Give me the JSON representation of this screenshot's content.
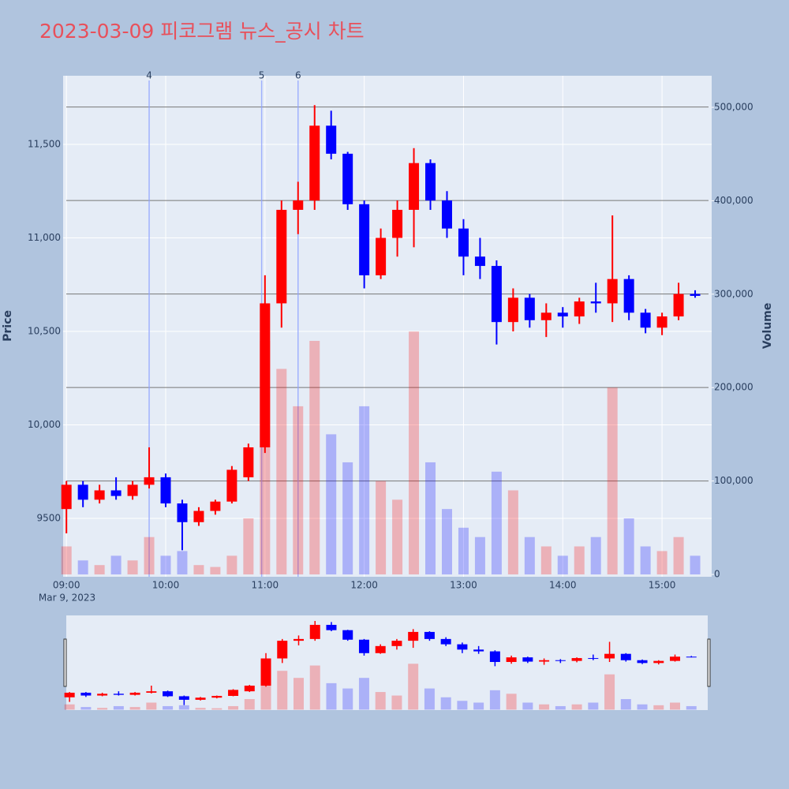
{
  "chart_data": {
    "type": "candlestick",
    "title": "2023-03-09 피코그램 뉴스_공시 차트",
    "x_label_date": "Mar 9, 2023",
    "y_label": "Price",
    "y2_label": "Volume",
    "x": [
      "09:00",
      "09:10",
      "09:20",
      "09:30",
      "09:40",
      "09:50",
      "10:00",
      "10:10",
      "10:20",
      "10:30",
      "10:40",
      "10:50",
      "11:00",
      "11:10",
      "11:20",
      "11:30",
      "11:40",
      "11:50",
      "12:00",
      "12:10",
      "12:20",
      "12:30",
      "12:40",
      "12:50",
      "13:00",
      "13:10",
      "13:20",
      "13:30",
      "13:40",
      "13:50",
      "14:00",
      "14:10",
      "14:20",
      "14:30",
      "14:40",
      "14:50",
      "15:00",
      "15:10",
      "15:20"
    ],
    "open": [
      9550,
      9680,
      9600,
      9650,
      9620,
      9680,
      9720,
      9580,
      9480,
      9540,
      9590,
      9720,
      9880,
      10650,
      11150,
      11200,
      11600,
      11450,
      11180,
      10800,
      11000,
      11150,
      11400,
      11200,
      11050,
      10900,
      10850,
      10550,
      10680,
      10560,
      10600,
      10580,
      10660,
      10650,
      10780,
      10600,
      10520,
      10580,
      10700
    ],
    "high": [
      9700,
      9700,
      9680,
      9720,
      9700,
      9880,
      9740,
      9600,
      9560,
      9600,
      9780,
      9900,
      10800,
      11200,
      11300,
      11710,
      11680,
      11460,
      11200,
      11050,
      11200,
      11480,
      11420,
      11250,
      11100,
      11000,
      10880,
      10730,
      10700,
      10650,
      10630,
      10680,
      10760,
      11120,
      10800,
      10620,
      10600,
      10760,
      10720
    ],
    "low": [
      9420,
      9560,
      9580,
      9600,
      9600,
      9660,
      9560,
      9330,
      9460,
      9520,
      9580,
      9700,
      9850,
      10520,
      11020,
      11150,
      11420,
      11150,
      10730,
      10780,
      10900,
      10950,
      11150,
      11000,
      10800,
      10780,
      10430,
      10500,
      10520,
      10470,
      10520,
      10540,
      10600,
      10550,
      10560,
      10490,
      10480,
      10560,
      10680
    ],
    "close": [
      9680,
      9600,
      9650,
      9620,
      9680,
      9720,
      9580,
      9480,
      9540,
      9590,
      9760,
      9880,
      10650,
      11150,
      11200,
      11600,
      11450,
      11180,
      10800,
      11000,
      11150,
      11400,
      11200,
      11050,
      10900,
      10850,
      10550,
      10680,
      10560,
      10600,
      10580,
      10660,
      10650,
      10780,
      10600,
      10520,
      10580,
      10700,
      10690
    ],
    "volume": [
      30000,
      15000,
      10000,
      20000,
      15000,
      40000,
      20000,
      25000,
      10000,
      8000,
      20000,
      60000,
      250000,
      220000,
      180000,
      250000,
      150000,
      120000,
      180000,
      100000,
      80000,
      260000,
      120000,
      70000,
      50000,
      40000,
      110000,
      90000,
      40000,
      30000,
      20000,
      30000,
      40000,
      200000,
      60000,
      30000,
      25000,
      40000,
      20000
    ],
    "up_color": "#ff0000",
    "down_color": "#0000ff",
    "xlim": [
      "08:58",
      "15:30"
    ],
    "xticks": [
      "09:00",
      "10:00",
      "11:00",
      "12:00",
      "13:00",
      "14:00",
      "15:00"
    ],
    "ylim": [
      9188,
      11867
    ],
    "yticks": [
      9500,
      {
        "value": 10000,
        "label": "10,000"
      },
      {
        "value": 10500,
        "label": "10,500"
      },
      {
        "value": 11000,
        "label": "11,000"
      },
      {
        "value": 11500,
        "label": "11,500"
      }
    ],
    "y2lim": [
      -2500,
      533800
    ],
    "y2ticks": [
      0,
      {
        "value": 100000,
        "label": "100,000"
      },
      {
        "value": 200000,
        "label": "200,000"
      },
      {
        "value": 300000,
        "label": "300,000"
      },
      {
        "value": 400000,
        "label": "400,000"
      },
      {
        "value": 500000,
        "label": "500,000"
      }
    ],
    "hlines": [
      9700,
      10200,
      10700,
      11200,
      11700
    ],
    "annotations": [
      {
        "x": "09:50",
        "label": "4"
      },
      {
        "x": "10:58",
        "label": "5"
      },
      {
        "x": "11:20",
        "label": "6"
      }
    ],
    "grid": true
  }
}
